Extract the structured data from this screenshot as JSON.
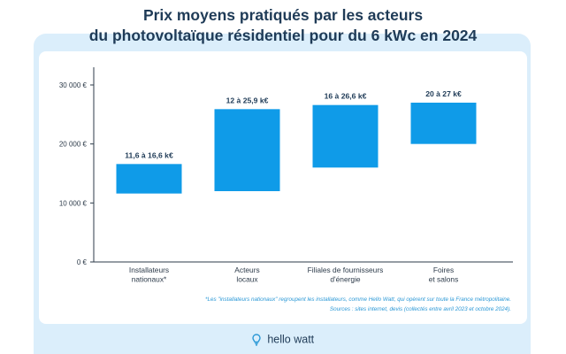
{
  "header": {
    "title_line1": "Prix moyens pratiqués par les acteurs",
    "title_line2": "du photovoltaïque résidentiel pour du 6 kWc en 2024"
  },
  "chart_data": {
    "type": "bar",
    "subtype": "floating-range",
    "title": "Prix moyens pratiqués par les acteurs du photovoltaïque résidentiel pour du 6 kWc en 2024",
    "categories": [
      [
        "Installateurs",
        "nationaux*"
      ],
      [
        "Acteurs",
        "locaux"
      ],
      [
        "Filiales de fournisseurs",
        "d'énergie"
      ],
      [
        "Foires",
        "et salons"
      ]
    ],
    "ranges": [
      [
        11600,
        16600
      ],
      [
        12000,
        25900
      ],
      [
        16000,
        26600
      ],
      [
        20000,
        27000
      ]
    ],
    "data_labels": [
      "11,6 à 16,6 k€",
      "12 à 25,9 k€",
      "16 à 26,6 k€",
      "20 à 27 k€"
    ],
    "y_ticks": [
      0,
      10000,
      20000,
      30000
    ],
    "y_tick_labels": [
      "0 €",
      "10 000 €",
      "20 000 €",
      "30 000 €"
    ],
    "ylim": [
      0,
      33000
    ],
    "xlabel": "",
    "ylabel": "",
    "grid": false,
    "bar_color": "#0f9be8"
  },
  "footnote": {
    "line1": "*Les \"installateurs nationaux\" regroupent les installateurs, comme Hello Watt, qui opèrent sur toute la France métropolitaine.",
    "line2": "Sources : sites internet, devis (collectés entre avril 2023 et octobre 2024)."
  },
  "brand": {
    "name": "hello watt",
    "icon": "lightbulb-pin-icon"
  },
  "colors": {
    "title": "#1f3b57",
    "background_band": "#dbeefb",
    "bar": "#0f9be8",
    "footnote": "#2b98d6",
    "axis": "#2d3b4a"
  }
}
